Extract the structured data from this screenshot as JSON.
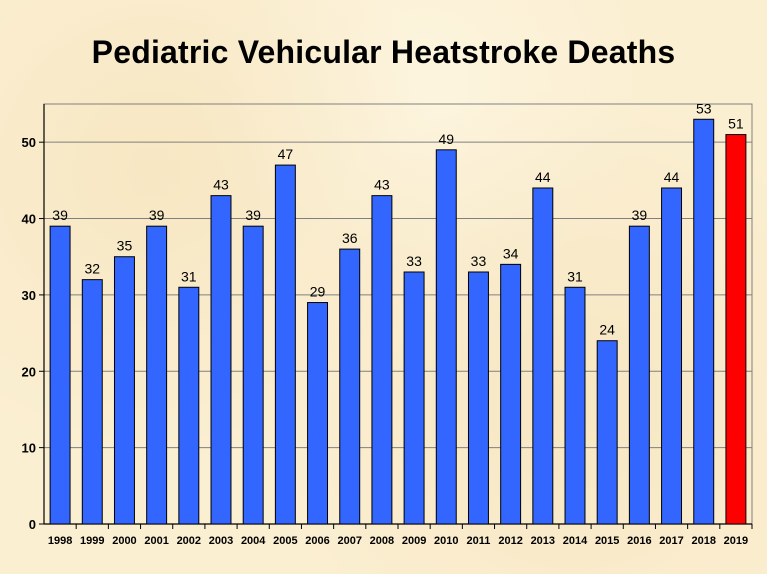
{
  "chart_data": {
    "type": "bar",
    "title": "Pediatric Vehicular Heatstroke Deaths",
    "categories": [
      "1998",
      "1999",
      "2000",
      "2001",
      "2002",
      "2003",
      "2004",
      "2005",
      "2006",
      "2007",
      "2008",
      "2009",
      "2010",
      "2011",
      "2012",
      "2013",
      "2014",
      "2015",
      "2016",
      "2017",
      "2018",
      "2019"
    ],
    "values": [
      39,
      32,
      35,
      39,
      31,
      43,
      39,
      47,
      29,
      36,
      43,
      33,
      49,
      33,
      34,
      44,
      31,
      24,
      39,
      44,
      53,
      51
    ],
    "ylim": [
      0,
      55
    ],
    "yticks": [
      0,
      10,
      20,
      30,
      40,
      50
    ],
    "grid": true,
    "colors": {
      "bar": "#3366ff",
      "highlight": "#ff0000",
      "highlight_category": "2019"
    }
  }
}
